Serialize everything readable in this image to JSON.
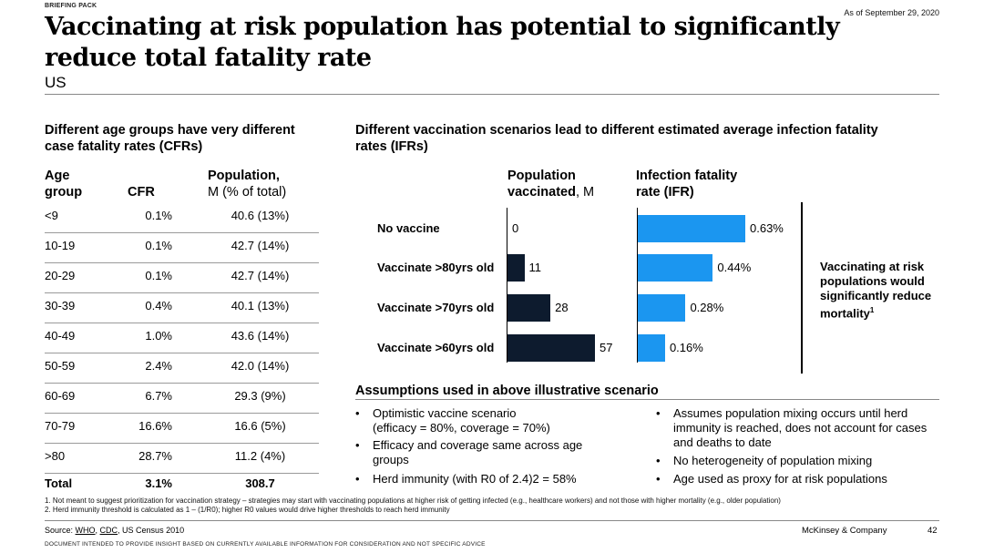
{
  "header": {
    "briefing": "BRIEFING PACK",
    "as_of": "As of September 29, 2020",
    "title_line1": "Vaccinating at risk population has potential to significantly",
    "title_line2": "reduce total fatality rate",
    "subtitle": "US"
  },
  "left": {
    "heading_line1": "Different age groups have very different",
    "heading_line2": "case fatality rates (CFRs)",
    "col_age_1": "Age",
    "col_age_2": "group",
    "col_cfr": "CFR",
    "col_pop_1": "Population,",
    "col_pop_2": "M (% of total)",
    "rows": [
      {
        "age": "<9",
        "cfr": "0.1%",
        "pop": "40.6 (13%)"
      },
      {
        "age": "10-19",
        "cfr": "0.1%",
        "pop": "42.7 (14%)"
      },
      {
        "age": "20-29",
        "cfr": "0.1%",
        "pop": "42.7 (14%)"
      },
      {
        "age": "30-39",
        "cfr": "0.4%",
        "pop": "40.1 (13%)"
      },
      {
        "age": "40-49",
        "cfr": "1.0%",
        "pop": "43.6 (14%)"
      },
      {
        "age": "50-59",
        "cfr": "2.4%",
        "pop": "42.0 (14%)"
      },
      {
        "age": "60-69",
        "cfr": "6.7%",
        "pop": "29.3 (9%)"
      },
      {
        "age": "70-79",
        "cfr": "16.6%",
        "pop": "16.6 (5%)"
      },
      {
        "age": ">80",
        "cfr": "28.7%",
        "pop": "11.2 (4%)"
      }
    ],
    "total": {
      "age": "Total",
      "cfr": "3.1%",
      "pop": "308.7"
    }
  },
  "right": {
    "heading_line1": "Different vaccination scenarios lead to different estimated average infection fatality",
    "heading_line2": "rates (IFRs)",
    "col_vacc_1": "Population",
    "col_vacc_2_bold": "vaccinated",
    "col_vacc_2_rest": ", M",
    "col_ifr_1": "Infection fatality",
    "col_ifr_2": "rate (IFR)",
    "takeaway": "Vaccinating at risk populations would significantly reduce mortality",
    "takeaway_sup": "1"
  },
  "chart_data": {
    "type": "bar",
    "categories": [
      "No vaccine",
      "Vaccinate >80yrs old",
      "Vaccinate >70yrs old",
      "Vaccinate >60yrs old"
    ],
    "series": [
      {
        "name": "Population vaccinated, M",
        "values": [
          0,
          11,
          28,
          57
        ],
        "labels": [
          "0",
          "11",
          "28",
          "57"
        ],
        "color": "#0d1b2e"
      },
      {
        "name": "Infection fatality rate (IFR)",
        "values": [
          0.63,
          0.44,
          0.28,
          0.16
        ],
        "labels": [
          "0.63%",
          "0.44%",
          "0.28%",
          "0.16%"
        ],
        "color": "#1b96f0"
      }
    ]
  },
  "assumptions": {
    "heading": "Assumptions used in above illustrative scenario",
    "bullet": "•",
    "left": [
      [
        "Optimistic vaccine scenario",
        "(efficacy = 80%, coverage = 70%)"
      ],
      [
        "Efficacy and coverage same across age",
        "groups"
      ],
      [
        "Herd immunity (with R0 of 2.4)2 = 58%"
      ]
    ],
    "right": [
      [
        "Assumes population mixing occurs until herd",
        "immunity is reached, does not account for cases",
        "and deaths to date"
      ],
      [
        "No heterogeneity of population mixing"
      ],
      [
        "Age used as proxy for at risk populations"
      ]
    ]
  },
  "footer": {
    "footnote1": "1. Not meant to suggest prioritization for vaccination strategy – strategies may start with vaccinating populations at higher risk of getting infected (e.g., healthcare workers) and not those with higher mortality (e.g., older population)",
    "footnote2": "2. Herd immunity threshold is calculated as 1 – (1/R0); higher R0 values would drive higher thresholds to reach herd immunity",
    "source_prefix": "Source: ",
    "source_who": "WHO",
    "source_sep": ", ",
    "source_cdc": "CDC",
    "source_rest": ", US Census 2010",
    "company": "McKinsey & Company",
    "page": "42",
    "disclaimer": "DOCUMENT INTENDED TO PROVIDE INSIGHT BASED ON CURRENTLY AVAILABLE INFORMATION FOR CONSIDERATION AND NOT SPECIFIC ADVICE"
  }
}
